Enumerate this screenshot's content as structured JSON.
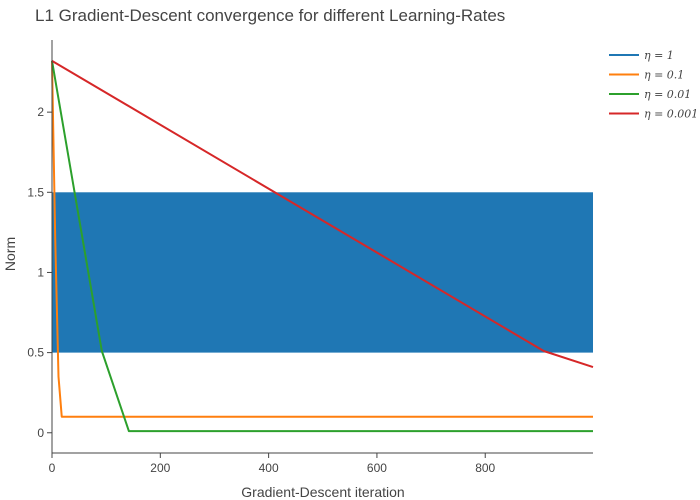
{
  "chart_data": {
    "type": "line",
    "title": "L1 Gradient-Descent convergence for different Learning-Rates",
    "xlabel": "Gradient-Descent iteration",
    "ylabel": "Norm",
    "xlim": [
      0,
      999
    ],
    "ylim": [
      -0.12,
      2.45
    ],
    "xticks": [
      0,
      200,
      400,
      600,
      800
    ],
    "xtick_labels": [
      "0",
      "200",
      "400",
      "600",
      "800"
    ],
    "yticks": [
      0,
      0.5,
      1,
      1.5,
      2
    ],
    "ytick_labels": [
      "0",
      "0.5",
      "1",
      "1.5",
      "2"
    ],
    "grid": false,
    "legend_position": "top-right-outside",
    "series": [
      {
        "name": "η = 1",
        "color": "#1f77b4",
        "style": "oscillating-band",
        "band_low": 0.5,
        "band_high": 1.5
      },
      {
        "name": "η = 0.1",
        "color": "#ff7f0e",
        "x": [
          0,
          6,
          12,
          18,
          999
        ],
        "y": [
          2.32,
          1.2,
          0.35,
          0.1,
          0.1
        ]
      },
      {
        "name": "η = 0.01",
        "color": "#2ca02c",
        "x": [
          0,
          92,
          142,
          999
        ],
        "y": [
          2.32,
          0.51,
          0.01,
          0.01
        ]
      },
      {
        "name": "η = 0.001",
        "color": "#d62728",
        "x": [
          0,
          908,
          999
        ],
        "y": [
          2.32,
          0.51,
          0.41
        ]
      }
    ]
  }
}
